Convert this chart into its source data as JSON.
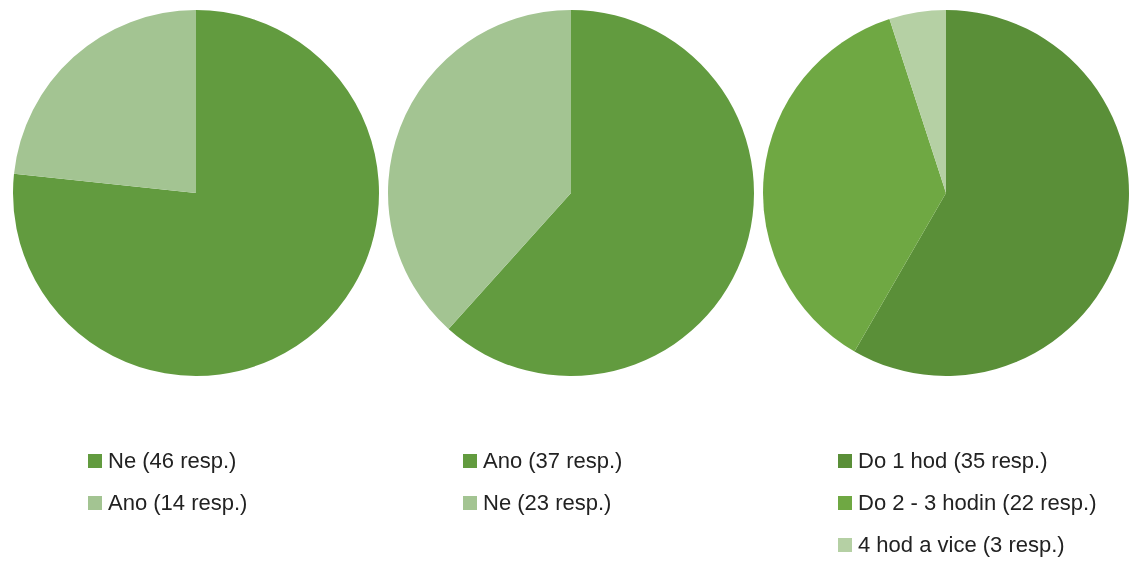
{
  "chart_data": [
    {
      "type": "pie",
      "categories": [
        "Ne (46 resp.)",
        "Ano (14 resp.)"
      ],
      "values": [
        46,
        14
      ],
      "colors": [
        "#629b3f",
        "#a3c492"
      ],
      "legend": "bottom"
    },
    {
      "type": "pie",
      "categories": [
        "Ano (37 resp.)",
        "Ne (23 resp.)"
      ],
      "values": [
        37,
        23
      ],
      "colors": [
        "#629b3f",
        "#a3c492"
      ],
      "legend": "bottom"
    },
    {
      "type": "pie",
      "categories": [
        "Do 1 hod (35 resp.)",
        "Do 2 - 3 hodin (22 resp.)",
        "4 hod a vice (3 resp.)"
      ],
      "values": [
        35,
        22,
        3
      ],
      "colors": [
        "#5a8f38",
        "#6fa843",
        "#b5d0a4"
      ],
      "legend": "bottom"
    }
  ]
}
